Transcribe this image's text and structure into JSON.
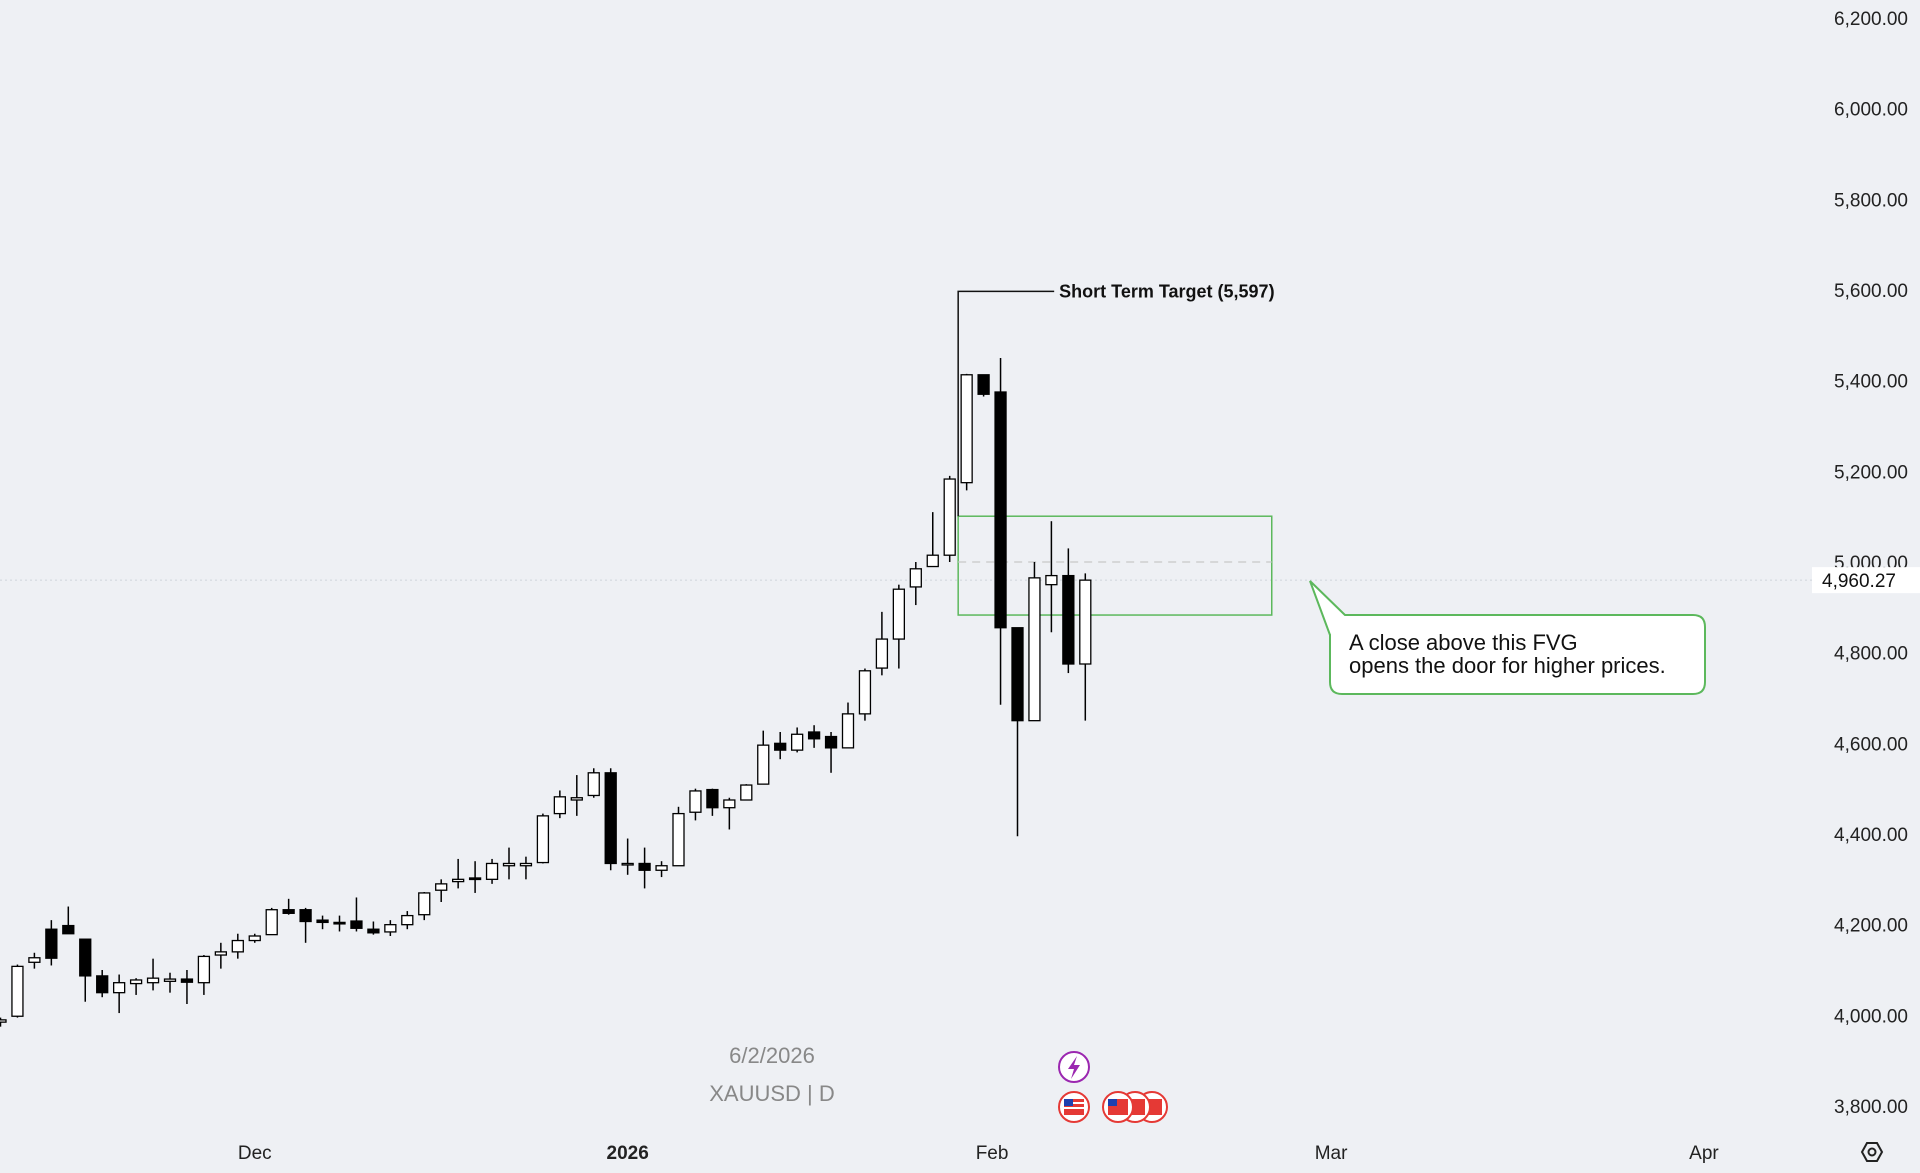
{
  "chart_data": {
    "type": "candlestick",
    "symbol": "XAUUSD | D",
    "watermark_date": "6/2/2026",
    "ylim": [
      3780,
      6230
    ],
    "y_ticks": [
      "6,200.00",
      "6,000.00",
      "5,800.00",
      "5,600.00",
      "5,400.00",
      "5,200.00",
      "5,000.00",
      "4,800.00",
      "4,600.00",
      "4,400.00",
      "4,200.00",
      "4,000.00",
      "3,800.00"
    ],
    "y_tick_values": [
      6200,
      6000,
      5800,
      5600,
      5400,
      5200,
      5000,
      4800,
      4600,
      4400,
      4200,
      4000,
      3800
    ],
    "x_ticks": [
      {
        "label": "Dec",
        "index": 15,
        "bold": false
      },
      {
        "label": "2026",
        "index": 37,
        "bold": true
      },
      {
        "label": "Feb",
        "index": 58.5,
        "bold": false
      },
      {
        "label": "Mar",
        "index": 78.5,
        "bold": false
      },
      {
        "label": "Apr",
        "index": 100.5,
        "bold": false
      }
    ],
    "current_price": "4,960.27",
    "current_price_value": 4960,
    "target": {
      "label": "Short Term Target (5,597)",
      "value": 5597,
      "anchor_index": 56.5
    },
    "fvg": {
      "top": 5101,
      "bottom": 4883,
      "mid": 5000,
      "start_index": 56.5,
      "end_index": 75
    },
    "callout": {
      "lines": [
        "A close above this FVG",
        "opens the door for higher prices."
      ]
    },
    "candles": [
      [
        3985,
        3995,
        3975,
        3990
      ],
      [
        3998,
        4112,
        3995,
        4108
      ],
      [
        4117,
        4138,
        4103,
        4127
      ],
      [
        4190,
        4210,
        4110,
        4126
      ],
      [
        4198,
        4240,
        4180,
        4180
      ],
      [
        4168,
        4168,
        4030,
        4087
      ],
      [
        4087,
        4100,
        4040,
        4050
      ],
      [
        4050,
        4090,
        4005,
        4072
      ],
      [
        4070,
        4082,
        4045,
        4078
      ],
      [
        4072,
        4125,
        4055,
        4082
      ],
      [
        4075,
        4094,
        4050,
        4080
      ],
      [
        4080,
        4100,
        4025,
        4073
      ],
      [
        4072,
        4133,
        4045,
        4130
      ],
      [
        4133,
        4160,
        4103,
        4140
      ],
      [
        4140,
        4180,
        4125,
        4165
      ],
      [
        4165,
        4180,
        4160,
        4175
      ],
      [
        4178,
        4237,
        4178,
        4233
      ],
      [
        4233,
        4257,
        4222,
        4225
      ],
      [
        4233,
        4237,
        4160,
        4207
      ],
      [
        4210,
        4220,
        4190,
        4205
      ],
      [
        4205,
        4220,
        4185,
        4202
      ],
      [
        4208,
        4260,
        4185,
        4192
      ],
      [
        4190,
        4207,
        4178,
        4182
      ],
      [
        4184,
        4210,
        4175,
        4200
      ],
      [
        4200,
        4230,
        4190,
        4220
      ],
      [
        4222,
        4272,
        4210,
        4270
      ],
      [
        4276,
        4300,
        4250,
        4290
      ],
      [
        4295,
        4345,
        4280,
        4300
      ],
      [
        4303,
        4340,
        4270,
        4300
      ],
      [
        4300,
        4345,
        4290,
        4335
      ],
      [
        4330,
        4370,
        4300,
        4335
      ],
      [
        4330,
        4350,
        4300,
        4335
      ],
      [
        4337,
        4445,
        4335,
        4440
      ],
      [
        4445,
        4496,
        4435,
        4482
      ],
      [
        4475,
        4530,
        4440,
        4480
      ],
      [
        4485,
        4545,
        4480,
        4535
      ],
      [
        4535,
        4545,
        4320,
        4335
      ],
      [
        4335,
        4390,
        4310,
        4335
      ],
      [
        4335,
        4370,
        4280,
        4320
      ],
      [
        4320,
        4340,
        4305,
        4330
      ],
      [
        4330,
        4460,
        4330,
        4445
      ],
      [
        4448,
        4500,
        4430,
        4495
      ],
      [
        4498,
        4500,
        4440,
        4458
      ],
      [
        4458,
        4480,
        4410,
        4475
      ],
      [
        4475,
        4510,
        4475,
        4508
      ],
      [
        4510,
        4628,
        4510,
        4596
      ],
      [
        4600,
        4625,
        4565,
        4585
      ],
      [
        4585,
        4635,
        4580,
        4620
      ],
      [
        4625,
        4640,
        4590,
        4610
      ],
      [
        4615,
        4625,
        4535,
        4590
      ],
      [
        4590,
        4690,
        4590,
        4665
      ],
      [
        4665,
        4765,
        4650,
        4760
      ],
      [
        4766,
        4890,
        4750,
        4830
      ],
      [
        4830,
        4950,
        4765,
        4940
      ],
      [
        4945,
        5000,
        4905,
        4985
      ],
      [
        4990,
        5110,
        4990,
        5015
      ],
      [
        5015,
        5190,
        5000,
        5183
      ],
      [
        5175,
        5415,
        5158,
        5413
      ],
      [
        5413,
        5410,
        5365,
        5370
      ],
      [
        5375,
        5450,
        4685,
        4855
      ],
      [
        4855,
        4855,
        4395,
        4650
      ],
      [
        4650,
        5000,
        4650,
        4965
      ],
      [
        4950,
        5090,
        4845,
        4970
      ],
      [
        4970,
        5030,
        4755,
        4775
      ],
      [
        4775,
        4975,
        4650,
        4960
      ]
    ]
  }
}
